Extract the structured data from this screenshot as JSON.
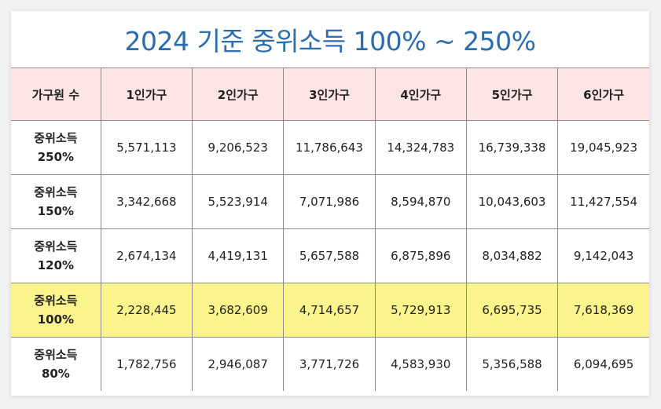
{
  "title": "2024 기준 중위소득 100% ~ 250%",
  "colors": {
    "title": "#2b6cae",
    "header_bg": "#fce4e4",
    "highlight_bg": "#fbf48c"
  },
  "table": {
    "corner": "가구원 수",
    "columns": [
      "1인가구",
      "2인가구",
      "3인가구",
      "4인가구",
      "5인가구",
      "6인가구"
    ],
    "rows": [
      {
        "label_top": "중위소득",
        "label_bottom": "250%",
        "values": [
          "5,571,113",
          "9,206,523",
          "11,786,643",
          "14,324,783",
          "16,739,338",
          "19,045,923"
        ]
      },
      {
        "label_top": "중위소득",
        "label_bottom": "150%",
        "values": [
          "3,342,668",
          "5,523,914",
          "7,071,986",
          "8,594,870",
          "10,043,603",
          "11,427,554"
        ]
      },
      {
        "label_top": "중위소득",
        "label_bottom": "120%",
        "values": [
          "2,674,134",
          "4,419,131",
          "5,657,588",
          "6,875,896",
          "8,034,882",
          "9,142,043"
        ]
      },
      {
        "label_top": "중위소득",
        "label_bottom": "100%",
        "values": [
          "2,228,445",
          "3,682,609",
          "4,714,657",
          "5,729,913",
          "6,695,735",
          "7,618,369"
        ]
      },
      {
        "label_top": "중위소득",
        "label_bottom": "80%",
        "values": [
          "1,782,756",
          "2,946,087",
          "3,771,726",
          "4,583,930",
          "5,356,588",
          "6,094,695"
        ]
      }
    ]
  }
}
